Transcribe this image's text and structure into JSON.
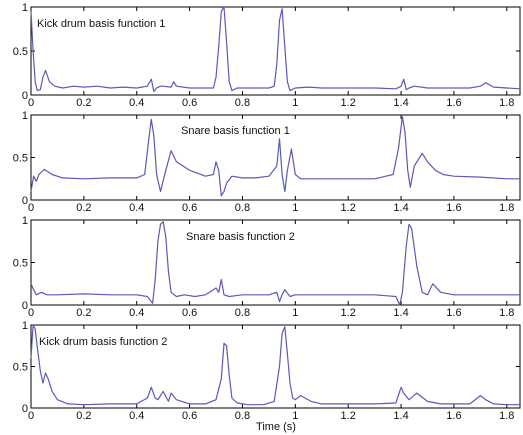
{
  "figure": {
    "xlabel": "Time (s)",
    "line_color": "#5a5ab8"
  },
  "chart_data": [
    {
      "type": "line",
      "title": "Kick drum basis function 1",
      "xlim": [
        0,
        1.85
      ],
      "ylim": [
        0,
        1
      ],
      "x_ticks": [
        0,
        0.2,
        0.4,
        0.6,
        0.8,
        1,
        1.2,
        1.4,
        1.6,
        1.8
      ],
      "x_tick_labels": [
        "0",
        "0.2",
        "0.4",
        "0.6",
        "0.8",
        "1",
        "1.2",
        "1.4",
        "1.6",
        "1.8"
      ],
      "y_ticks": [
        0,
        0.5,
        1
      ],
      "y_tick_labels": [
        "0",
        "0.5",
        "1"
      ],
      "series": [
        {
          "x": [
            0,
            0.008,
            0.016,
            0.024,
            0.035,
            0.045,
            0.055,
            0.07,
            0.09,
            0.12,
            0.16,
            0.2,
            0.25,
            0.3,
            0.35,
            0.4,
            0.44,
            0.455,
            0.465,
            0.475,
            0.49,
            0.5,
            0.53,
            0.54,
            0.55,
            0.6,
            0.65,
            0.69,
            0.7,
            0.71,
            0.72,
            0.73,
            0.74,
            0.75,
            0.76,
            0.78,
            0.82,
            0.86,
            0.9,
            0.92,
            0.93,
            0.94,
            0.95,
            0.96,
            0.97,
            0.98,
            1.0,
            1.05,
            1.1,
            1.2,
            1.3,
            1.38,
            1.4,
            1.41,
            1.42,
            1.43,
            1.45,
            1.5,
            1.55,
            1.6,
            1.66,
            1.7,
            1.72,
            1.75,
            1.8,
            1.85
          ],
          "y": [
            0.95,
            0.5,
            0.15,
            0.05,
            0.06,
            0.2,
            0.28,
            0.15,
            0.1,
            0.08,
            0.1,
            0.09,
            0.1,
            0.08,
            0.09,
            0.08,
            0.1,
            0.18,
            0.04,
            0.08,
            0.1,
            0.1,
            0.09,
            0.15,
            0.1,
            0.08,
            0.08,
            0.08,
            0.2,
            0.55,
            0.95,
            1.0,
            0.6,
            0.15,
            0.05,
            0.08,
            0.08,
            0.08,
            0.08,
            0.1,
            0.35,
            0.85,
            0.98,
            0.55,
            0.15,
            0.05,
            0.08,
            0.09,
            0.08,
            0.08,
            0.08,
            0.07,
            0.1,
            0.18,
            0.06,
            0.08,
            0.1,
            0.08,
            0.08,
            0.08,
            0.08,
            0.1,
            0.14,
            0.09,
            0.08,
            0.07
          ]
        }
      ]
    },
    {
      "type": "line",
      "title": "Snare basis function 1",
      "xlim": [
        0,
        1.85
      ],
      "ylim": [
        0,
        1
      ],
      "x_ticks": [
        0,
        0.2,
        0.4,
        0.6,
        0.8,
        1,
        1.2,
        1.4,
        1.6,
        1.8
      ],
      "x_tick_labels": [
        "0",
        "0.2",
        "0.4",
        "0.6",
        "0.8",
        "1",
        "1.2",
        "1.4",
        "1.6",
        "1.8"
      ],
      "y_ticks": [
        0,
        0.5,
        1
      ],
      "y_tick_labels": [
        "0",
        "0.5",
        "1"
      ],
      "series": [
        {
          "x": [
            0,
            0.01,
            0.02,
            0.03,
            0.05,
            0.08,
            0.12,
            0.2,
            0.3,
            0.4,
            0.43,
            0.445,
            0.455,
            0.465,
            0.475,
            0.49,
            0.51,
            0.53,
            0.55,
            0.6,
            0.66,
            0.69,
            0.7,
            0.71,
            0.72,
            0.73,
            0.74,
            0.76,
            0.8,
            0.85,
            0.9,
            0.93,
            0.94,
            0.95,
            0.96,
            0.97,
            0.985,
            1.0,
            1.02,
            1.1,
            1.2,
            1.3,
            1.37,
            1.39,
            1.405,
            1.415,
            1.425,
            1.435,
            1.45,
            1.48,
            1.5,
            1.53,
            1.56,
            1.6,
            1.7,
            1.8,
            1.85
          ],
          "y": [
            0.1,
            0.28,
            0.22,
            0.3,
            0.36,
            0.3,
            0.26,
            0.25,
            0.26,
            0.26,
            0.3,
            0.7,
            0.95,
            0.75,
            0.3,
            0.1,
            0.35,
            0.58,
            0.45,
            0.35,
            0.28,
            0.3,
            0.45,
            0.35,
            0.05,
            0.1,
            0.2,
            0.28,
            0.26,
            0.26,
            0.28,
            0.4,
            0.72,
            0.3,
            0.1,
            0.35,
            0.6,
            0.3,
            0.25,
            0.25,
            0.25,
            0.25,
            0.3,
            0.6,
            0.98,
            0.8,
            0.35,
            0.15,
            0.4,
            0.55,
            0.45,
            0.35,
            0.3,
            0.28,
            0.27,
            0.25,
            0.25
          ]
        }
      ]
    },
    {
      "type": "line",
      "title": "Snare basis function 2",
      "xlim": [
        0,
        1.85
      ],
      "ylim": [
        0,
        1
      ],
      "x_ticks": [
        0,
        0.2,
        0.4,
        0.6,
        0.8,
        1,
        1.2,
        1.4,
        1.6,
        1.8
      ],
      "x_tick_labels": [
        "0",
        "0.2",
        "0.4",
        "0.6",
        "0.8",
        "1",
        "1.2",
        "1.4",
        "1.6",
        "1.8"
      ],
      "y_ticks": [
        0,
        0.5,
        1
      ],
      "y_tick_labels": [
        "0",
        "0.5",
        "1"
      ],
      "series": [
        {
          "x": [
            0,
            0.01,
            0.02,
            0.04,
            0.06,
            0.1,
            0.2,
            0.3,
            0.4,
            0.44,
            0.455,
            0.46,
            0.47,
            0.48,
            0.49,
            0.5,
            0.51,
            0.52,
            0.53,
            0.55,
            0.58,
            0.62,
            0.66,
            0.7,
            0.71,
            0.72,
            0.73,
            0.75,
            0.8,
            0.85,
            0.9,
            0.93,
            0.94,
            0.95,
            0.96,
            0.98,
            1.0,
            1.05,
            1.1,
            1.2,
            1.3,
            1.38,
            1.395,
            1.405,
            1.42,
            1.43,
            1.44,
            1.46,
            1.48,
            1.5,
            1.52,
            1.55,
            1.6,
            1.7,
            1.8,
            1.85
          ],
          "y": [
            0.25,
            0.18,
            0.12,
            0.15,
            0.12,
            0.12,
            0.13,
            0.12,
            0.12,
            0.1,
            0.04,
            0.02,
            0.3,
            0.75,
            0.95,
            0.98,
            0.8,
            0.4,
            0.15,
            0.1,
            0.12,
            0.1,
            0.12,
            0.2,
            0.15,
            0.3,
            0.12,
            0.1,
            0.12,
            0.12,
            0.12,
            0.15,
            0.04,
            0.12,
            0.18,
            0.1,
            0.12,
            0.12,
            0.12,
            0.12,
            0.12,
            0.1,
            0.0,
            0.15,
            0.7,
            0.95,
            0.9,
            0.45,
            0.15,
            0.12,
            0.25,
            0.15,
            0.12,
            0.12,
            0.12,
            0.12
          ]
        }
      ]
    },
    {
      "type": "line",
      "title": "Kick drum basis function 2",
      "xlim": [
        0,
        1.85
      ],
      "ylim": [
        0,
        1
      ],
      "x_ticks": [
        0,
        0.2,
        0.4,
        0.6,
        0.8,
        1,
        1.2,
        1.4,
        1.6,
        1.8
      ],
      "x_tick_labels": [
        "0",
        "0.2",
        "0.4",
        "0.6",
        "0.8",
        "1",
        "1.2",
        "1.4",
        "1.6",
        "1.8"
      ],
      "y_ticks": [
        0,
        0.5,
        1
      ],
      "y_tick_labels": [
        "0",
        "0.5",
        "1"
      ],
      "series": [
        {
          "x": [
            0,
            0.008,
            0.016,
            0.025,
            0.035,
            0.045,
            0.055,
            0.065,
            0.08,
            0.1,
            0.14,
            0.2,
            0.3,
            0.4,
            0.44,
            0.455,
            0.47,
            0.48,
            0.5,
            0.52,
            0.53,
            0.55,
            0.6,
            0.66,
            0.7,
            0.72,
            0.73,
            0.74,
            0.75,
            0.76,
            0.78,
            0.82,
            0.88,
            0.92,
            0.94,
            0.95,
            0.96,
            0.97,
            0.98,
            0.99,
            1.0,
            1.02,
            1.06,
            1.1,
            1.2,
            1.3,
            1.38,
            1.4,
            1.41,
            1.43,
            1.46,
            1.5,
            1.55,
            1.6,
            1.66,
            1.7,
            1.72,
            1.75,
            1.8,
            1.85
          ],
          "y": [
            0.6,
            1.0,
            0.95,
            0.7,
            0.45,
            0.3,
            0.42,
            0.35,
            0.2,
            0.1,
            0.05,
            0.04,
            0.05,
            0.05,
            0.12,
            0.25,
            0.12,
            0.1,
            0.2,
            0.08,
            0.18,
            0.1,
            0.05,
            0.05,
            0.1,
            0.35,
            0.78,
            0.75,
            0.4,
            0.12,
            0.06,
            0.04,
            0.04,
            0.08,
            0.5,
            0.9,
            0.98,
            0.65,
            0.3,
            0.12,
            0.1,
            0.15,
            0.08,
            0.05,
            0.05,
            0.05,
            0.06,
            0.25,
            0.18,
            0.1,
            0.18,
            0.08,
            0.05,
            0.05,
            0.05,
            0.15,
            0.1,
            0.05,
            0.04,
            0.04
          ]
        }
      ]
    }
  ]
}
